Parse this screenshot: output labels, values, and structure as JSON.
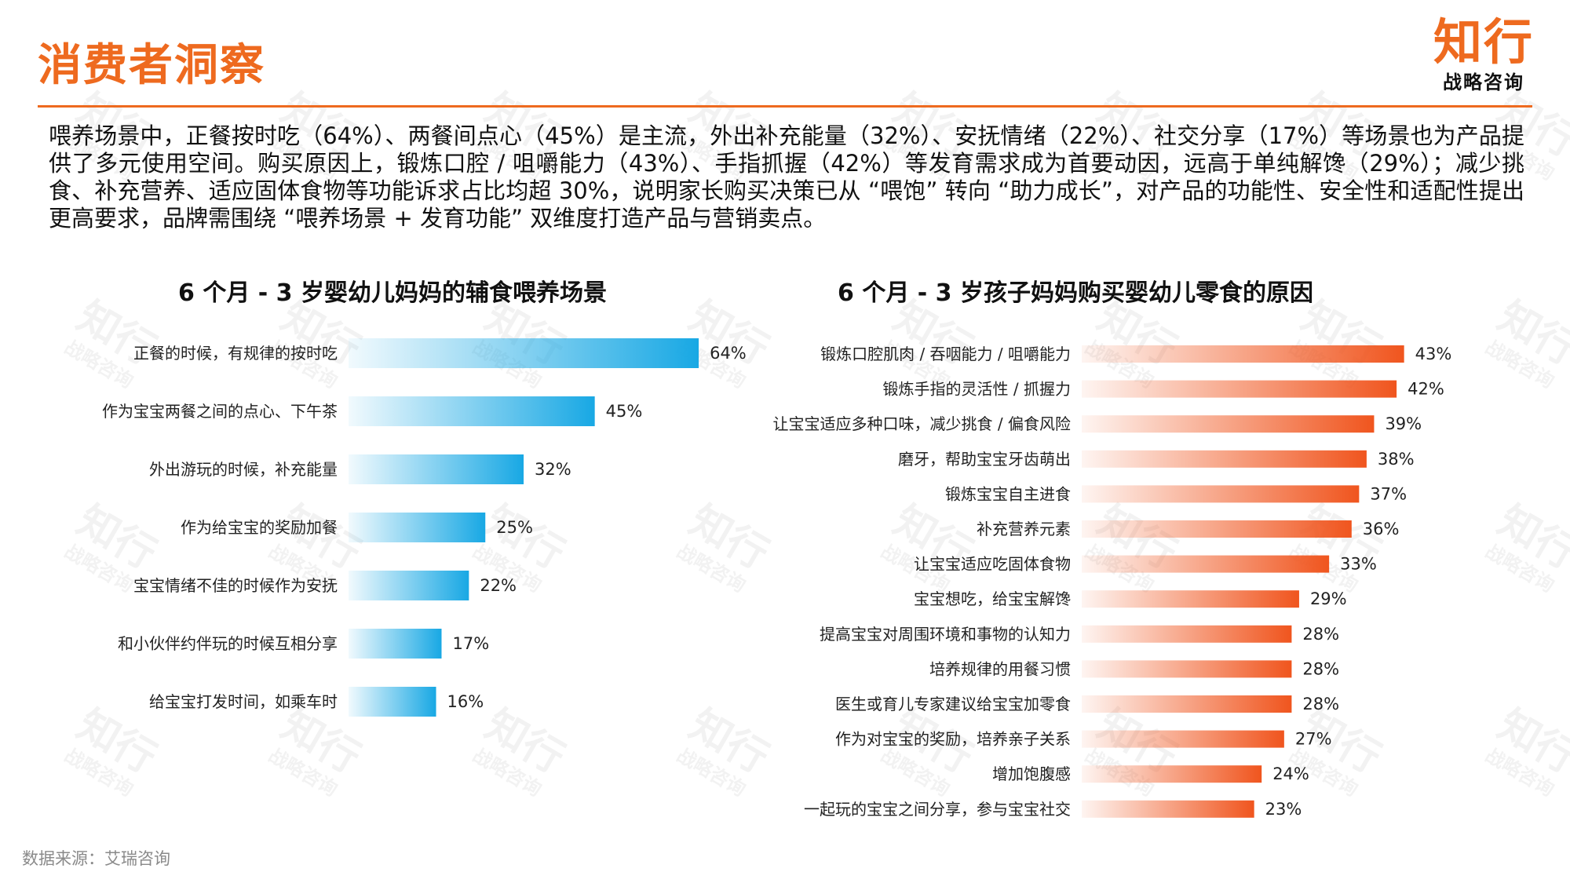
{
  "page": {
    "title": "消费者洞察",
    "logo": {
      "main": "知行",
      "sub": "战略咨询"
    },
    "summary": "喂养场景中，正餐按时吃（64%）、两餐间点心（45%）是主流，外出补充能量（32%）、安抚情绪（22%）、社交分享（17%）等场景也为产品提供了多元使用空间。购买原因上，锻炼口腔 / 咀嚼能力（43%）、手指抓握（42%）等发育需求成为首要动因，远高于单纯解馋（29%）；减少挑食、补充营养、适应固体食物等功能诉求占比均超 30%，说明家长购买决策已从 “喂饱” 转向 “助力成长”，对产品的功能性、安全性和适配性提出更高要求，品牌需围绕 “喂养场景 + 发育功能” 双维度打造产品与营销卖点。",
    "source": "数据来源：艾瑞咨询",
    "colors": {
      "accent": "#EE6A1F",
      "blue": "#18A8E4",
      "orange": "#F0551E"
    }
  },
  "chart_data": [
    {
      "type": "bar",
      "orientation": "horizontal",
      "title": "6 个月 - 3 岁婴幼儿妈妈的辅食喂养场景",
      "categories": [
        "正餐的时候，有规律的按时吃",
        "作为宝宝两餐之间的点心、下午茶",
        "外出游玩的时候，补充能量",
        "作为给宝宝的奖励加餐",
        "宝宝情绪不佳的时候作为安抚",
        "和小伙伴约伴玩的时候互相分享",
        "给宝宝打发时间，如乘车时"
      ],
      "values": [
        64,
        45,
        32,
        25,
        22,
        17,
        16
      ],
      "labels": [
        "64%",
        "45%",
        "32%",
        "25%",
        "22%",
        "17%",
        "16%"
      ],
      "unit": "%",
      "color": "#18A8E4",
      "grid": false,
      "legend": "none"
    },
    {
      "type": "bar",
      "orientation": "horizontal",
      "title": "6 个月 - 3 岁孩子妈妈购买婴幼儿零食的原因",
      "categories": [
        "锻炼口腔肌肉 / 吞咽能力 / 咀嚼能力",
        "锻炼手指的灵活性 / 抓握力",
        "让宝宝适应多种口味，减少挑食 / 偏食风险",
        "磨牙，帮助宝宝牙齿萌出",
        "锻炼宝宝自主进食",
        "补充营养元素",
        "让宝宝适应吃固体食物",
        "宝宝想吃，给宝宝解馋",
        "提高宝宝对周围环境和事物的认知力",
        "培养规律的用餐习惯",
        "医生或育儿专家建议给宝宝加零食",
        "作为对宝宝的奖励，培养亲子关系",
        "增加饱腹感",
        "一起玩的宝宝之间分享，参与宝宝社交"
      ],
      "values": [
        43,
        42,
        39,
        38,
        37,
        36,
        33,
        29,
        28,
        28,
        28,
        27,
        24,
        23
      ],
      "labels": [
        "43%",
        "42%",
        "39%",
        "38%",
        "37%",
        "36%",
        "33%",
        "29%",
        "28%",
        "28%",
        "28%",
        "27%",
        "24%",
        "23%"
      ],
      "unit": "%",
      "color": "#F0551E",
      "grid": false,
      "legend": "none"
    }
  ]
}
